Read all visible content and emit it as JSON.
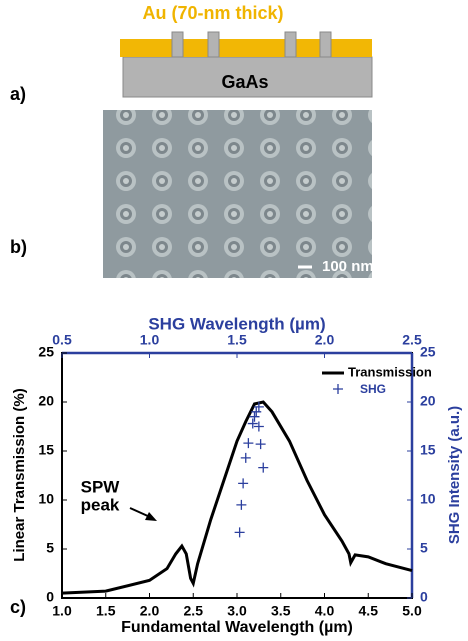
{
  "panels": {
    "a": {
      "label": "a)",
      "gold_label": "Au (70-nm thick)",
      "substrate_label": "GaAs"
    },
    "b": {
      "label": "b)",
      "scale_bar": "100 nm"
    },
    "c": {
      "label": "c)"
    }
  },
  "chart_data": {
    "type": "line",
    "xlabel": "Fundamental Wavelength (µm)",
    "ylabel": "Linear Transmission (%)",
    "x2label": "SHG Wavelength (µm)",
    "y2label": "SHG Intensity (a.u.)",
    "xlim": [
      1,
      5
    ],
    "xticks": [
      {
        "value": 1,
        "label": "1.0"
      },
      1.5,
      {
        "value": 2,
        "label": "2.0"
      },
      2.5,
      {
        "value": 3,
        "label": "3.0"
      },
      3.5,
      {
        "value": 4,
        "label": "4.0"
      },
      4.5,
      {
        "value": 5,
        "label": "5.0"
      }
    ],
    "x2lim": [
      0.5,
      2.5
    ],
    "x2ticks": [
      0.5,
      {
        "value": 1,
        "label": "1.0"
      },
      1.5,
      {
        "value": 2,
        "label": "2.0"
      },
      2.5
    ],
    "ylim": [
      0,
      25
    ],
    "yticks": [
      0,
      5,
      10,
      15,
      20,
      25
    ],
    "y2lim": [
      0,
      25
    ],
    "y2ticks": [
      0,
      5,
      10,
      15,
      20,
      25
    ],
    "annotation": [
      "SPW",
      "peak"
    ],
    "series": [
      {
        "name": "Transmission",
        "color": "#000000",
        "x": [
          1.0,
          1.5,
          2.0,
          2.2,
          2.3,
          2.37,
          2.42,
          2.47,
          2.5,
          2.55,
          2.7,
          2.85,
          3.0,
          3.1,
          3.2,
          3.3,
          3.4,
          3.6,
          3.8,
          4.0,
          4.2,
          4.28,
          4.3,
          4.35,
          4.5,
          4.7,
          5.0
        ],
        "values": [
          0.5,
          0.7,
          1.8,
          3.0,
          4.5,
          5.3,
          4.5,
          2.0,
          1.5,
          3.5,
          8,
          12,
          16,
          18,
          19.8,
          20,
          19,
          16,
          12,
          8.5,
          5.8,
          4.5,
          3.6,
          4.4,
          4.2,
          3.5,
          2.8
        ]
      },
      {
        "name": "SHG",
        "color": "#2b3f9e",
        "axis": "y2",
        "xaxis": "x2",
        "marker": "+",
        "x": [
          1.515,
          1.525,
          1.535,
          1.55,
          1.565,
          1.59,
          1.6,
          1.61,
          1.625,
          1.625,
          1.635,
          1.65
        ],
        "values": [
          6.7,
          9.5,
          11.7,
          14.3,
          15.8,
          17.8,
          18.5,
          19.0,
          19.5,
          17.5,
          15.7,
          13.3
        ]
      }
    ]
  }
}
